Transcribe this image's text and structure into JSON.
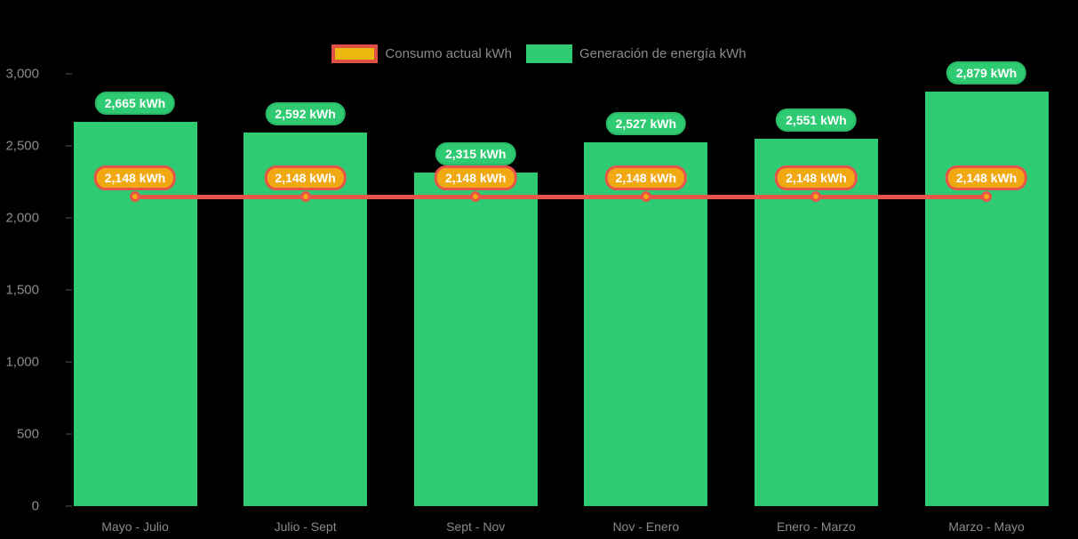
{
  "legend": {
    "items": [
      {
        "label": "Consumo actual kWh",
        "swatch_fill": "#EDB90E",
        "swatch_border": "#DF5145"
      },
      {
        "label": "Generación de energía kWh",
        "swatch_fill": "#2FCB72"
      }
    ]
  },
  "chart_data": {
    "type": "bar",
    "title": "",
    "xlabel": "",
    "ylabel": "",
    "categories": [
      "Mayo - Julio",
      "Julio - Sept",
      "Sept - Nov",
      "Nov - Enero",
      "Enero - Marzo",
      "Marzo - Mayo"
    ],
    "series": [
      {
        "name": "Generación de energía kWh",
        "type": "bar",
        "color": "#2FCB72",
        "label_fill": "#2FCB72",
        "label_border": "#29B866",
        "values": [
          2665,
          2592,
          2315,
          2527,
          2551,
          2879
        ],
        "point_labels": [
          "2,665 kWh",
          "2,592 kWh",
          "2,315 kWh",
          "2,527 kWh",
          "2,551 kWh",
          "2,879 kWh"
        ]
      },
      {
        "name": "Consumo actual kWh",
        "type": "line",
        "color": "#E8534A",
        "marker_fill": "#F2A813",
        "label_fill": "#F2A813",
        "label_border": "#E8534A",
        "values": [
          2148,
          2148,
          2148,
          2148,
          2148,
          2148
        ],
        "point_labels": [
          "2,148 kWh",
          "2,148 kWh",
          "2,148 kWh",
          "2,148 kWh",
          "2,148 kWh",
          "2,148 kWh"
        ]
      }
    ],
    "ylim": [
      0,
      3000
    ],
    "ytick_values": [
      0,
      500,
      1000,
      1500,
      2000,
      2500,
      3000
    ],
    "ytick_labels": [
      "0",
      "500",
      "1,000",
      "1,500",
      "2,000",
      "2,500",
      "3,000"
    ],
    "grid": false,
    "legend_position": "top-center",
    "background": "#000000"
  }
}
